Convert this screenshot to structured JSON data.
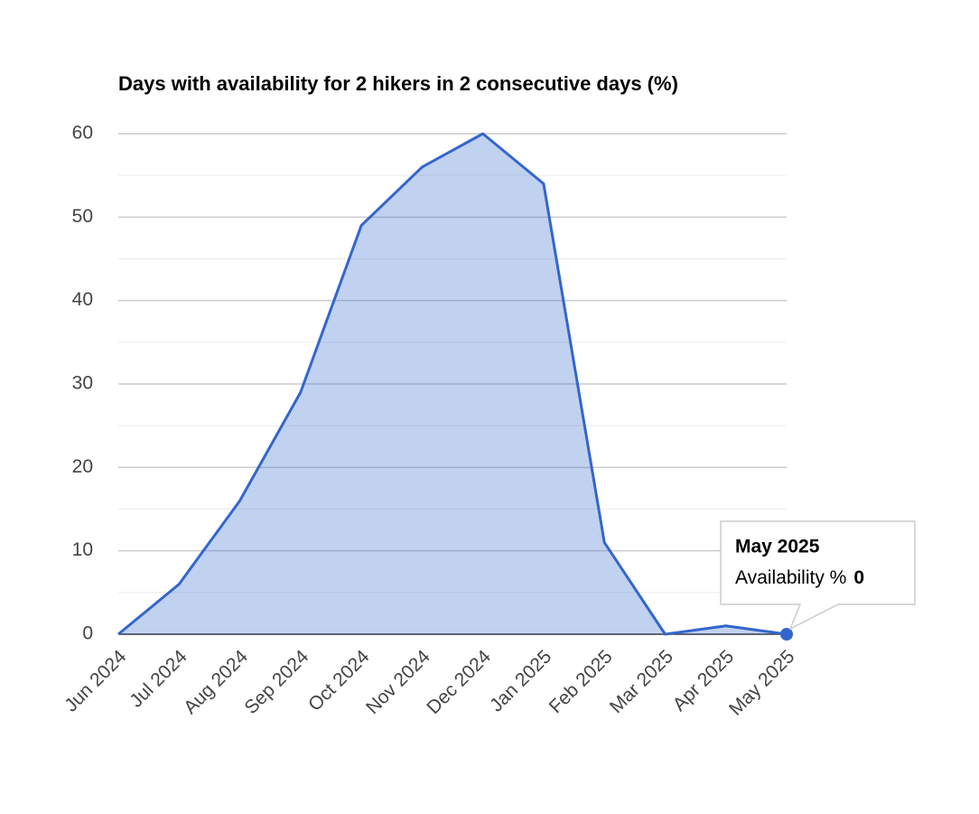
{
  "chart_data": {
    "type": "area",
    "title": "Days with availability for 2 hikers in 2 consecutive days (%)",
    "categories": [
      "Jun 2024",
      "Jul 2024",
      "Aug 2024",
      "Sep 2024",
      "Oct 2024",
      "Nov 2024",
      "Dec 2024",
      "Jan 2025",
      "Feb 2025",
      "Mar 2025",
      "Apr 2025",
      "May 2025"
    ],
    "series": [
      {
        "name": "Availability %",
        "color": "#3366cc",
        "values": [
          0,
          6,
          16,
          29,
          49,
          56,
          60,
          54,
          11,
          0,
          1,
          0
        ]
      }
    ],
    "ylim": [
      0,
      60
    ],
    "yticks": [
      0,
      10,
      20,
      30,
      40,
      50,
      60
    ],
    "grid": true,
    "tooltip_index": 11
  }
}
